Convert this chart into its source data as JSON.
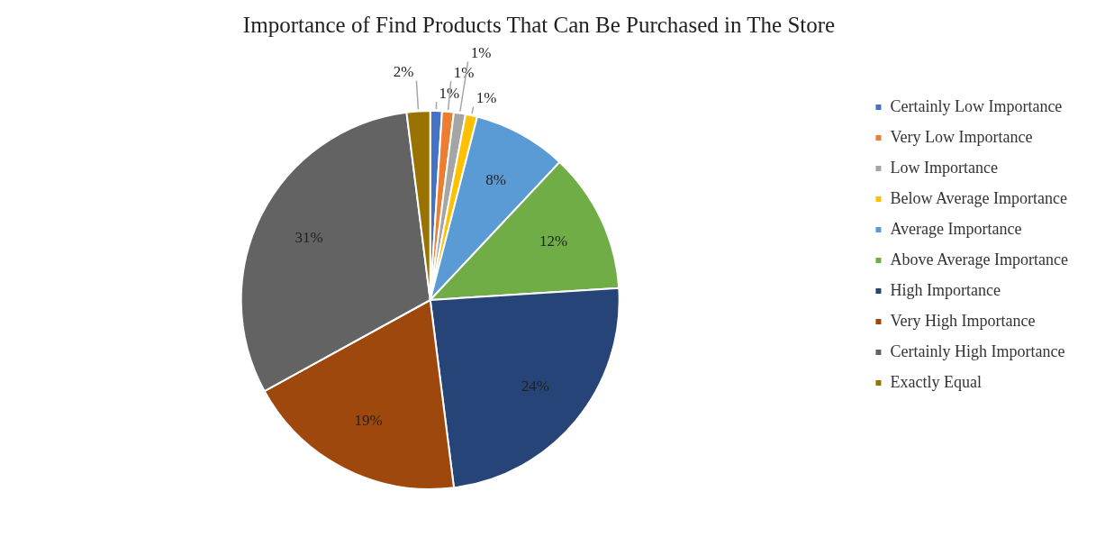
{
  "chart_data": {
    "type": "pie",
    "title": "Importance of Find Products That Can Be Purchased in The Store",
    "categories": [
      "Certainly Low Importance",
      "Very Low Importance",
      "Low Importance",
      "Below Average Importance",
      "Average Importance",
      "Above Average Importance",
      "High Importance",
      "Very High Importance",
      "Certainly High Importance",
      "Exactly Equal"
    ],
    "values": [
      1,
      1,
      1,
      1,
      8,
      12,
      24,
      19,
      31,
      2
    ],
    "value_labels": [
      "1%",
      "1%",
      "1%",
      "1%",
      "8%",
      "12%",
      "24%",
      "19%",
      "31%",
      "2%"
    ],
    "colors": [
      "#4472c4",
      "#ed7d31",
      "#a5a5a5",
      "#ffc000",
      "#5b9bd5",
      "#70ad47",
      "#264478",
      "#9e480e",
      "#636363",
      "#997300"
    ],
    "legend": "right"
  }
}
